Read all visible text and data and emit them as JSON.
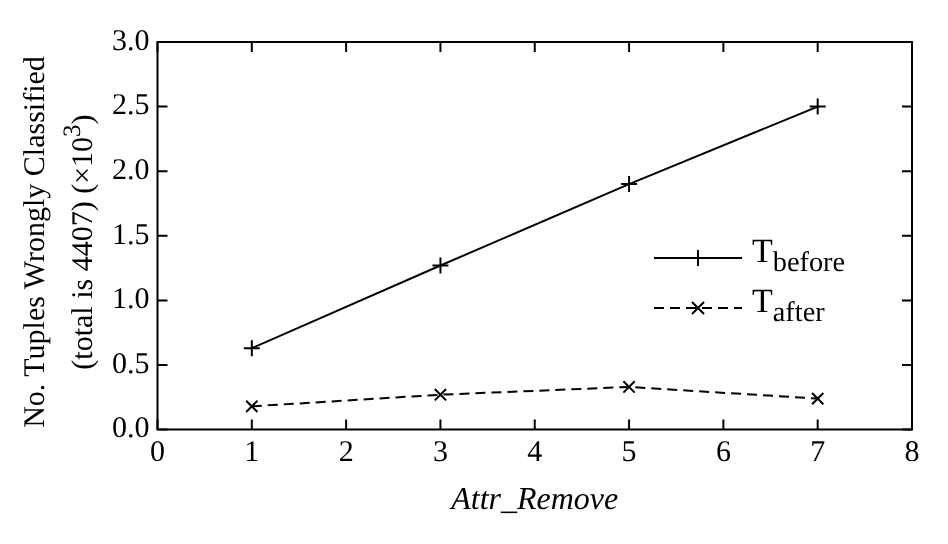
{
  "chart_data": {
    "type": "line",
    "ylabel": "No. Tuples Wrongly Classified\n(total is 4407) (×10$^{3}$)",
    "xlabel": "Attr_Remove",
    "x": [
      1,
      3,
      5,
      7
    ],
    "series": [
      {
        "name": "T$_{before}$",
        "color": "#000000",
        "values": [
          0.63,
          1.27,
          1.9,
          2.5
        ],
        "marker": "plus",
        "line_style": "solid"
      },
      {
        "name": "T$_{after}$",
        "color": "#000000",
        "values": [
          0.18,
          0.27,
          0.33,
          0.24
        ],
        "marker": "cross",
        "line_style": "dashed"
      }
    ],
    "xlim": [
      0,
      8
    ],
    "xticks": [
      0,
      1,
      2,
      3,
      4,
      5,
      6,
      7,
      8
    ],
    "ylim": [
      0,
      3
    ],
    "yticks": [
      {
        "value": 0,
        "label": "0.0"
      },
      {
        "value": 0.5,
        "label": "0.5"
      },
      {
        "value": 1,
        "label": "1.0"
      },
      {
        "value": 1.5,
        "label": "1.5"
      },
      {
        "value": 2,
        "label": "2.0"
      },
      {
        "value": 2.5,
        "label": "2.5"
      },
      {
        "value": 3,
        "label": "3.0"
      }
    ],
    "grid": false,
    "legend": "right"
  }
}
